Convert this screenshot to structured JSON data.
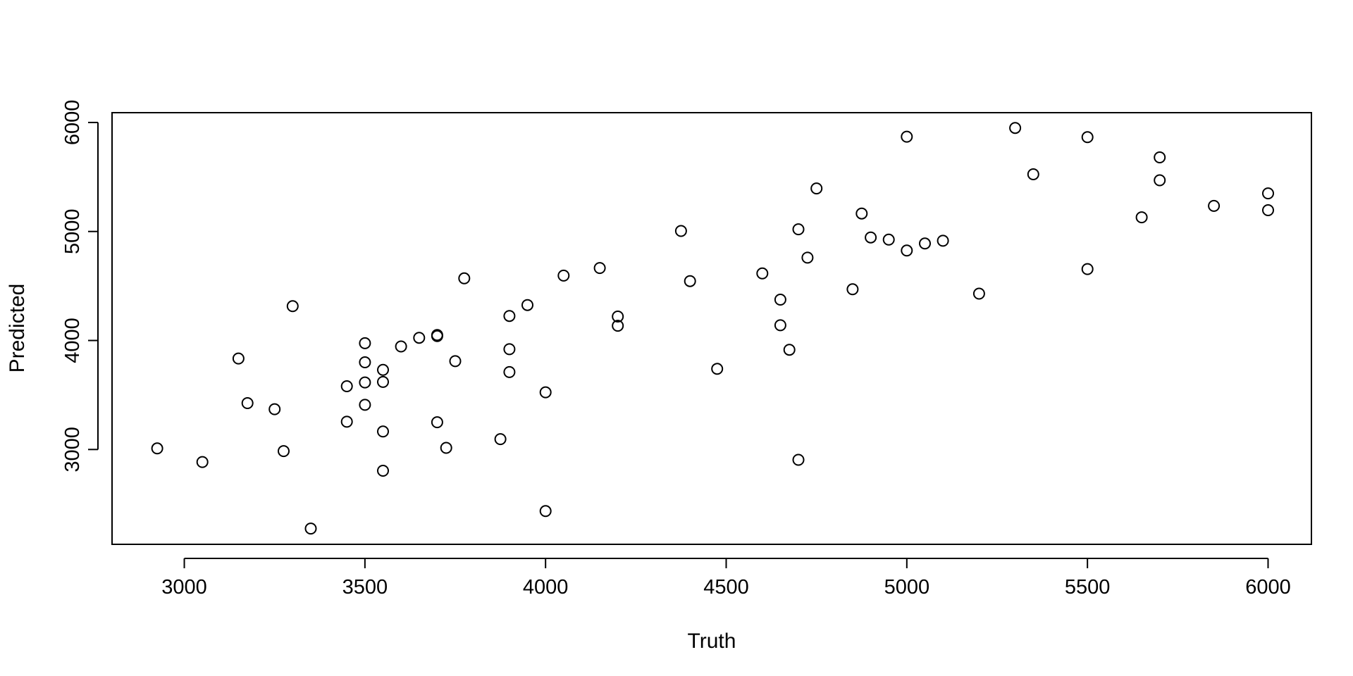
{
  "chart_data": {
    "type": "scatter",
    "title": "",
    "xlabel": "Truth",
    "ylabel": "Predicted",
    "xlim": [
      2800,
      6120
    ],
    "ylim": [
      2130,
      6090
    ],
    "xticks": [
      3000,
      3500,
      4000,
      4500,
      5000,
      5500,
      6000
    ],
    "yticks": [
      3000,
      4000,
      5000,
      6000
    ],
    "grid": false,
    "marker": "open-circle",
    "color": "#000000",
    "points": [
      {
        "x": 2925,
        "y": 3010
      },
      {
        "x": 3050,
        "y": 2885
      },
      {
        "x": 3150,
        "y": 3835
      },
      {
        "x": 3175,
        "y": 3425
      },
      {
        "x": 3250,
        "y": 3370
      },
      {
        "x": 3275,
        "y": 2985
      },
      {
        "x": 3300,
        "y": 4315
      },
      {
        "x": 3350,
        "y": 2275
      },
      {
        "x": 3450,
        "y": 3580
      },
      {
        "x": 3450,
        "y": 3255
      },
      {
        "x": 3500,
        "y": 3975
      },
      {
        "x": 3500,
        "y": 3800
      },
      {
        "x": 3500,
        "y": 3615
      },
      {
        "x": 3500,
        "y": 3410
      },
      {
        "x": 3550,
        "y": 3730
      },
      {
        "x": 3550,
        "y": 3620
      },
      {
        "x": 3550,
        "y": 3165
      },
      {
        "x": 3550,
        "y": 2805
      },
      {
        "x": 3600,
        "y": 3945
      },
      {
        "x": 3650,
        "y": 4025
      },
      {
        "x": 3700,
        "y": 4040
      },
      {
        "x": 3700,
        "y": 4050
      },
      {
        "x": 3700,
        "y": 3250
      },
      {
        "x": 3725,
        "y": 3015
      },
      {
        "x": 3750,
        "y": 3810
      },
      {
        "x": 3775,
        "y": 4570
      },
      {
        "x": 3875,
        "y": 3095
      },
      {
        "x": 3900,
        "y": 4225
      },
      {
        "x": 3900,
        "y": 3920
      },
      {
        "x": 3900,
        "y": 3710
      },
      {
        "x": 3950,
        "y": 4325
      },
      {
        "x": 4000,
        "y": 3525
      },
      {
        "x": 4000,
        "y": 2435
      },
      {
        "x": 4050,
        "y": 4595
      },
      {
        "x": 4150,
        "y": 4665
      },
      {
        "x": 4200,
        "y": 4220
      },
      {
        "x": 4200,
        "y": 4135
      },
      {
        "x": 4375,
        "y": 5005
      },
      {
        "x": 4400,
        "y": 4545
      },
      {
        "x": 4475,
        "y": 3740
      },
      {
        "x": 4600,
        "y": 4615
      },
      {
        "x": 4650,
        "y": 4375
      },
      {
        "x": 4650,
        "y": 4140
      },
      {
        "x": 4675,
        "y": 3915
      },
      {
        "x": 4700,
        "y": 5020
      },
      {
        "x": 4700,
        "y": 2905
      },
      {
        "x": 4725,
        "y": 4760
      },
      {
        "x": 4750,
        "y": 5395
      },
      {
        "x": 4850,
        "y": 4470
      },
      {
        "x": 4875,
        "y": 5165
      },
      {
        "x": 4900,
        "y": 4945
      },
      {
        "x": 4950,
        "y": 4925
      },
      {
        "x": 5000,
        "y": 5870
      },
      {
        "x": 5000,
        "y": 4825
      },
      {
        "x": 5050,
        "y": 4890
      },
      {
        "x": 5100,
        "y": 4915
      },
      {
        "x": 5200,
        "y": 4430
      },
      {
        "x": 5300,
        "y": 5950
      },
      {
        "x": 5350,
        "y": 5525
      },
      {
        "x": 5500,
        "y": 5865
      },
      {
        "x": 5500,
        "y": 4655
      },
      {
        "x": 5650,
        "y": 5130
      },
      {
        "x": 5700,
        "y": 5680
      },
      {
        "x": 5700,
        "y": 5470
      },
      {
        "x": 5850,
        "y": 5235
      },
      {
        "x": 6000,
        "y": 5350
      },
      {
        "x": 6000,
        "y": 5195
      }
    ]
  }
}
